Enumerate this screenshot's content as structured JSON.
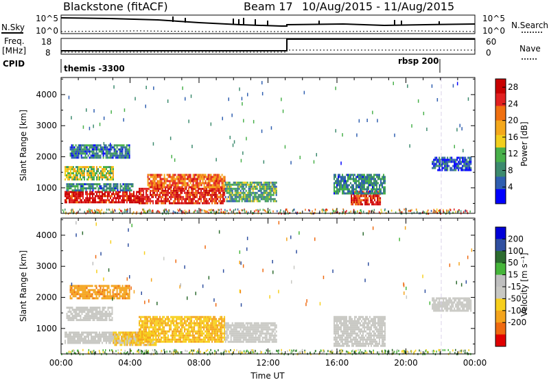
{
  "header": {
    "station": "Blackstone (fitACF)",
    "beam": "Beam 17",
    "date_range": "10/Aug/2015 - 11/Aug/2015"
  },
  "summary": {
    "left_labels": {
      "nsky": "N.Sky",
      "freq": "Freq.",
      "freq_unit": "[MHz]",
      "cpid": "CPID"
    },
    "right_labels": {
      "nsearch": "N.Search",
      "nave": "Nave"
    },
    "nsky_ticks": [
      "10^5",
      "10^0"
    ],
    "nsearch_ticks": [
      "10^5",
      "10^0"
    ],
    "freq_ticks": [
      "18",
      "8"
    ],
    "nave_ticks": [
      "60",
      "0"
    ],
    "cpid_left": "themis -3300",
    "cpid_right": "rbsp 200"
  },
  "colors": {
    "power_scale": [
      "#0000ff",
      "#2f5fb0",
      "#3c8a6e",
      "#48b04a",
      "#f2cf1e",
      "#f4a81c",
      "#f07010",
      "#e12020",
      "#c80000"
    ],
    "velocity_scale": [
      "#e00000",
      "#ef6a10",
      "#f4a41c",
      "#f7cf1c",
      "#c8c8c3",
      "#bfbfbf",
      "#46b53a",
      "#2c6b2f",
      "#2f4fa0",
      "#0000d8"
    ]
  },
  "chart_data": [
    {
      "type": "heatmap",
      "panel": "power",
      "xlabel": "",
      "ylabel": "Slant Range [km]",
      "x_ticks": [
        "00:00",
        "04:00",
        "08:00",
        "12:00",
        "16:00",
        "20:00",
        "00:00"
      ],
      "y_ticks": [
        1000,
        2000,
        3000,
        4000
      ],
      "ylim": [
        180,
        4550
      ],
      "xlim_hours": [
        0,
        24
      ],
      "colorbar_label": "Power [dB]",
      "colorbar_ticks": [
        4,
        8,
        12,
        16,
        20,
        24,
        28
      ],
      "colorbar_range": [
        0,
        30
      ],
      "regions": [
        {
          "t0": 0.2,
          "t1": 4.5,
          "r0": 550,
          "r1": 900,
          "value": 27
        },
        {
          "t0": 0.3,
          "t1": 4.2,
          "r0": 900,
          "r1": 1150,
          "value": 8
        },
        {
          "t0": 0.2,
          "t1": 3.0,
          "r0": 1300,
          "r1": 1700,
          "value": 14
        },
        {
          "t0": 4.5,
          "t1": 9.5,
          "r0": 500,
          "r1": 1000,
          "value": 26
        },
        {
          "t0": 5.0,
          "t1": 9.5,
          "r0": 1000,
          "r1": 1450,
          "value": 22
        },
        {
          "t0": 9.5,
          "t1": 12.5,
          "r0": 600,
          "r1": 1200,
          "value": 10
        },
        {
          "t0": 16.8,
          "t1": 18.5,
          "r0": 450,
          "r1": 900,
          "value": 26
        },
        {
          "t0": 15.8,
          "t1": 18.8,
          "r0": 800,
          "r1": 1450,
          "value": 8
        },
        {
          "t0": 0.5,
          "t1": 4.0,
          "r0": 2000,
          "r1": 2400,
          "value": 7
        },
        {
          "t0": 21.5,
          "t1": 23.8,
          "r0": 1600,
          "r1": 2000,
          "value": 5
        }
      ]
    },
    {
      "type": "heatmap",
      "panel": "velocity",
      "xlabel": "Time UT",
      "ylabel": "Slant Range [km]",
      "x_ticks": [
        "00:00",
        "04:00",
        "08:00",
        "12:00",
        "16:00",
        "20:00",
        "00:00"
      ],
      "y_ticks": [
        1000,
        2000,
        3000,
        4000
      ],
      "ylim": [
        180,
        4550
      ],
      "xlim_hours": [
        0,
        24
      ],
      "colorbar_label": "Velocity [m s⁻¹]",
      "colorbar_ticks": [
        -200,
        -100,
        -50,
        -15,
        15,
        50,
        100,
        200
      ],
      "colorbar_range": [
        -250,
        250
      ],
      "regions": [
        {
          "t0": 0.2,
          "t1": 4.5,
          "r0": 550,
          "r1": 900,
          "value": 0
        },
        {
          "t0": 0.3,
          "t1": 3.0,
          "r0": 1300,
          "r1": 1700,
          "value": 0
        },
        {
          "t0": 3.0,
          "t1": 5.5,
          "r0": 500,
          "r1": 900,
          "value": -40
        },
        {
          "t0": 4.5,
          "t1": 9.5,
          "r0": 600,
          "r1": 1400,
          "value": -45
        },
        {
          "t0": 9.5,
          "t1": 12.5,
          "r0": 600,
          "r1": 1200,
          "value": 0
        },
        {
          "t0": 15.8,
          "t1": 18.8,
          "r0": 450,
          "r1": 1400,
          "value": 0
        },
        {
          "t0": 0.5,
          "t1": 4.0,
          "r0": 2000,
          "r1": 2400,
          "value": -80
        },
        {
          "t0": 21.5,
          "t1": 23.8,
          "r0": 1600,
          "r1": 2000,
          "value": 0
        }
      ]
    }
  ]
}
